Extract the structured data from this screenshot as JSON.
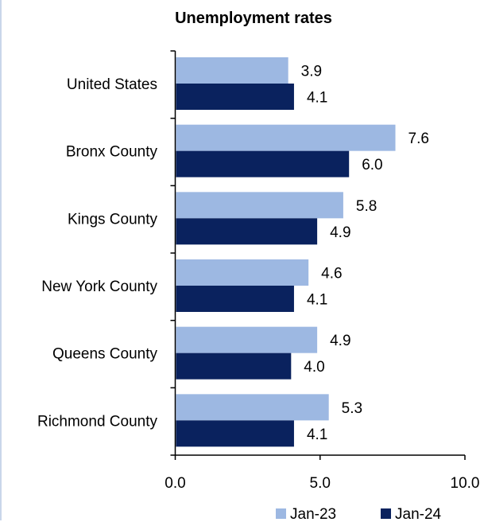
{
  "chart_data": {
    "type": "bar",
    "orientation": "horizontal",
    "title": "Unemployment rates",
    "categories": [
      "United States",
      "Bronx County",
      "Kings County",
      "New York County",
      "Queens County",
      "Richmond County"
    ],
    "series": [
      {
        "name": "Jan-23",
        "color": "#9db8e2",
        "values": [
          3.9,
          7.6,
          5.8,
          4.6,
          4.9,
          5.3
        ]
      },
      {
        "name": "Jan-24",
        "color": "#0a225e",
        "values": [
          4.1,
          6.0,
          4.9,
          4.1,
          4.0,
          4.1
        ]
      }
    ],
    "value_labels": [
      [
        "3.9",
        "7.6",
        "5.8",
        "4.6",
        "4.9",
        "5.3"
      ],
      [
        "4.1",
        "6.0",
        "4.9",
        "4.1",
        "4.0",
        "4.1"
      ]
    ],
    "xlim": [
      0,
      10
    ],
    "x_ticks": [
      0,
      5,
      10
    ],
    "x_tick_labels": [
      "0.0",
      "5.0",
      "10.0"
    ],
    "xlabel": "",
    "ylabel": "",
    "grid": false,
    "legend_position": "bottom"
  }
}
